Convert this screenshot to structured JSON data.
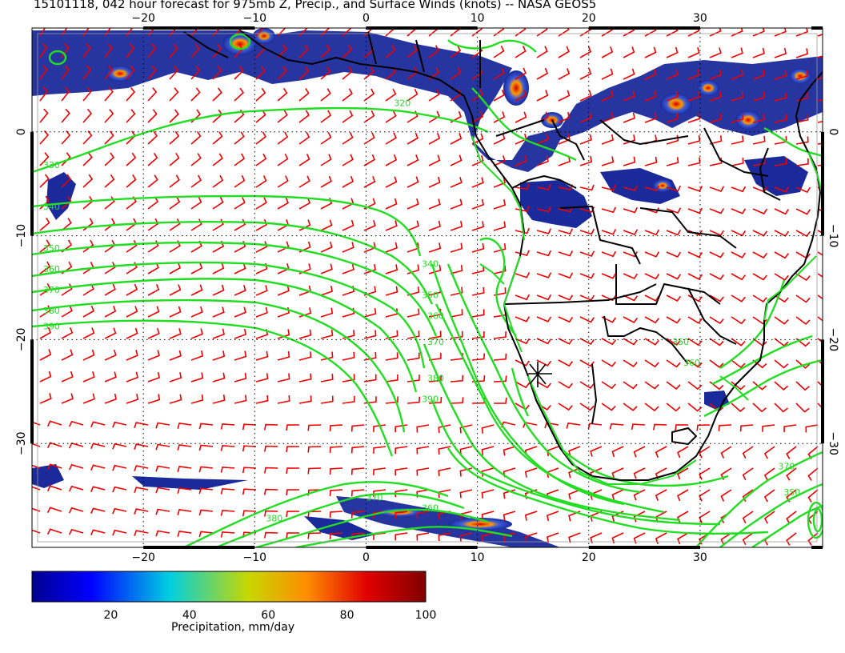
{
  "title": "15101118, 042 hour forecast for 975mb Z, Precip., and Surface Winds (knots) -- NASA GEOS5",
  "map": {
    "lon_range": [
      -30,
      41
    ],
    "lat_range": [
      -40,
      10
    ],
    "lon_ticks": [
      -20,
      -10,
      0,
      10,
      20,
      30
    ],
    "lat_ticks": [
      0,
      -10,
      -20,
      -30
    ],
    "lon_tick_labels": [
      "−20",
      "−10",
      "0",
      "10",
      "20",
      "30"
    ],
    "lat_tick_labels": [
      "0",
      "−10",
      "−20",
      "−30"
    ],
    "colors": {
      "contour": "#22dd22",
      "wind_barbs": "#ee0000",
      "coastline": "#000000",
      "precip_low": "#1a2a9a",
      "precip_high": "#cc0000"
    },
    "contour_labels": [
      {
        "text": "320",
        "lon": 2.5,
        "lat": 2.5
      },
      {
        "text": "330",
        "lon": -29,
        "lat": -3.5
      },
      {
        "text": "340",
        "lon": -29,
        "lat": -7.5
      },
      {
        "text": "350",
        "lon": -29,
        "lat": -11.5
      },
      {
        "text": "360",
        "lon": -29,
        "lat": -13.5
      },
      {
        "text": "370",
        "lon": -29,
        "lat": -15.5
      },
      {
        "text": "380",
        "lon": -29,
        "lat": -17.5
      },
      {
        "text": "390",
        "lon": -29,
        "lat": -19
      },
      {
        "text": "340",
        "lon": 5,
        "lat": -13
      },
      {
        "text": "350",
        "lon": 5,
        "lat": -16
      },
      {
        "text": "360",
        "lon": 5.5,
        "lat": -18
      },
      {
        "text": "370",
        "lon": 5.5,
        "lat": -20.5
      },
      {
        "text": "380",
        "lon": 5.5,
        "lat": -24
      },
      {
        "text": "390",
        "lon": 5,
        "lat": -26
      },
      {
        "text": "380",
        "lon": -9,
        "lat": -37.5
      },
      {
        "text": "370",
        "lon": 0,
        "lat": -35.5
      },
      {
        "text": "360",
        "lon": 5,
        "lat": -36.5
      },
      {
        "text": "350",
        "lon": 27.5,
        "lat": -20.5
      },
      {
        "text": "360",
        "lon": 28.5,
        "lat": -22.5
      },
      {
        "text": "370",
        "lon": 37,
        "lat": -32.5
      },
      {
        "text": "350",
        "lon": 37.5,
        "lat": -35
      }
    ]
  },
  "colorbar": {
    "title": "Precipitation, mm/day",
    "ticks": [
      20,
      40,
      60,
      80,
      100
    ],
    "min": 0,
    "max": 100
  }
}
